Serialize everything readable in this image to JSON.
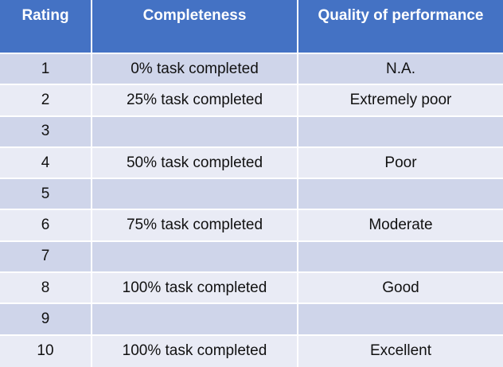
{
  "headers": {
    "rating": "Rating",
    "completeness": "Completeness",
    "quality": "Quality of performance"
  },
  "rows": [
    {
      "rating": "1",
      "completeness": "0% task completed",
      "quality": "N.A."
    },
    {
      "rating": "2",
      "completeness": "25% task completed",
      "quality": "Extremely poor"
    },
    {
      "rating": "3",
      "completeness": "",
      "quality": ""
    },
    {
      "rating": "4",
      "completeness": "50% task completed",
      "quality": "Poor"
    },
    {
      "rating": "5",
      "completeness": "",
      "quality": ""
    },
    {
      "rating": "6",
      "completeness": "75% task completed",
      "quality": "Moderate"
    },
    {
      "rating": "7",
      "completeness": "",
      "quality": ""
    },
    {
      "rating": "8",
      "completeness": "100% task completed",
      "quality": "Good"
    },
    {
      "rating": "9",
      "completeness": "",
      "quality": ""
    },
    {
      "rating": "10",
      "completeness": "100% task completed",
      "quality": "Excellent"
    }
  ],
  "colors": {
    "header_bg": "#4472c4",
    "row_odd_bg": "#cfd5ea",
    "row_even_bg": "#e9ebf5"
  }
}
